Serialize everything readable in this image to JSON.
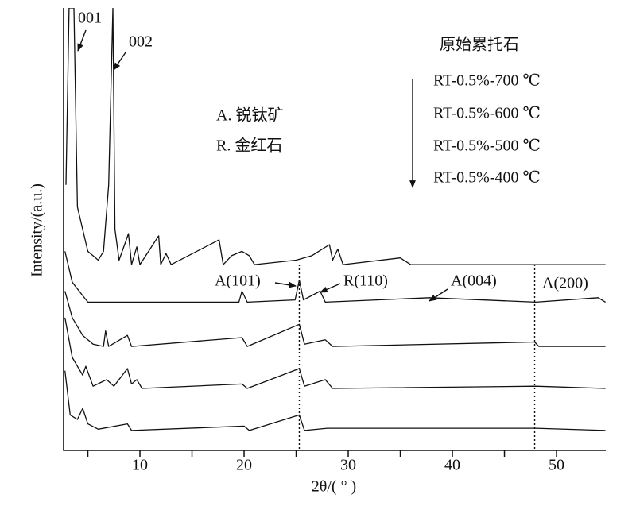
{
  "chart_data": {
    "type": "line",
    "x_label": "2θ/( ° )",
    "y_label": "Intensity/(a.u.)",
    "xlim": [
      2.67,
      54.73
    ],
    "ylim": [
      0,
      100
    ],
    "xticks": [
      10,
      20,
      30,
      40,
      50
    ],
    "xminor_ticks": [
      5,
      15,
      25,
      35,
      45
    ],
    "legend_title": "原始累托石",
    "series": [
      {
        "name": "原始累托石",
        "color": "#111111",
        "x": [
          2.9,
          3.2,
          3.66,
          4.0,
          5,
          6,
          6.5,
          7.0,
          7.4,
          7.6,
          8,
          8.9,
          9.2,
          9.7,
          10,
          11.8,
          12.0,
          12.5,
          13,
          17.6,
          18,
          18.8,
          19.8,
          20.5,
          21,
          25,
          26.5,
          28.2,
          28.5,
          29,
          29.5,
          35,
          36,
          54.7
        ],
        "values": [
          60,
          100,
          100,
          55,
          45,
          43,
          45,
          60,
          100,
          50,
          43,
          49,
          42,
          46,
          42,
          48.5,
          42,
          44.5,
          42,
          47.6,
          42,
          44,
          45,
          44,
          42,
          43,
          44,
          46.5,
          43,
          45.5,
          42,
          43.5,
          42,
          42
        ]
      },
      {
        "name": "RT-0.5%-700 ℃",
        "color": "#111111",
        "x": [
          2.8,
          3.5,
          4.5,
          5,
          19.5,
          19.8,
          20.3,
          24.9,
          25.3,
          25.7,
          27.3,
          27.8,
          37.8,
          48,
          54,
          54.7
        ],
        "values": [
          45,
          38,
          35,
          33.5,
          33.5,
          36,
          33.5,
          34,
          38.5,
          34,
          36,
          33.5,
          34.5,
          33.5,
          34.5,
          33.5
        ]
      },
      {
        "name": "RT-0.5%-600 ℃",
        "color": "#111111",
        "x": [
          2.8,
          3.5,
          4.5,
          5.5,
          6.5,
          6.7,
          7,
          8.8,
          9.2,
          19.8,
          20.3,
          25.3,
          25.8,
          27.8,
          28.5,
          47.9,
          48.3,
          54.7
        ],
        "values": [
          36,
          30,
          26,
          24,
          23.5,
          27,
          23.5,
          26,
          23.5,
          25.5,
          23.5,
          28.5,
          24,
          25,
          23.5,
          24.5,
          23.5,
          23.5
        ]
      },
      {
        "name": "RT-0.5%-500 ℃",
        "color": "#111111",
        "x": [
          2.8,
          3.5,
          4.5,
          4.8,
          5.5,
          6.8,
          7.5,
          8.8,
          9.2,
          9.7,
          10.2,
          19.8,
          20.3,
          25.3,
          25.8,
          27.8,
          28.5,
          48,
          54.7
        ],
        "values": [
          30,
          21,
          17,
          19,
          14.5,
          16,
          14.5,
          18.5,
          15,
          16,
          14,
          15,
          14,
          18.5,
          14.5,
          16,
          14,
          14.5,
          14
        ]
      },
      {
        "name": "RT-0.5%-400 ℃",
        "color": "#111111",
        "x": [
          2.8,
          3.3,
          4.0,
          4.5,
          5,
          6,
          8.8,
          9.2,
          20,
          20.5,
          25.3,
          25.8,
          28,
          48,
          54.7
        ],
        "values": [
          18,
          8,
          7,
          9.5,
          6,
          4.8,
          6,
          4.5,
          5.5,
          4.5,
          8,
          4.5,
          5,
          5,
          4.5
        ]
      }
    ],
    "reference_lines": [
      25.3,
      47.9
    ],
    "annotations": [
      "001",
      "002",
      "A. 锐钛矿",
      "R. 金红石",
      "A(101)",
      "R(110)",
      "A(004)",
      "A(200)"
    ]
  }
}
